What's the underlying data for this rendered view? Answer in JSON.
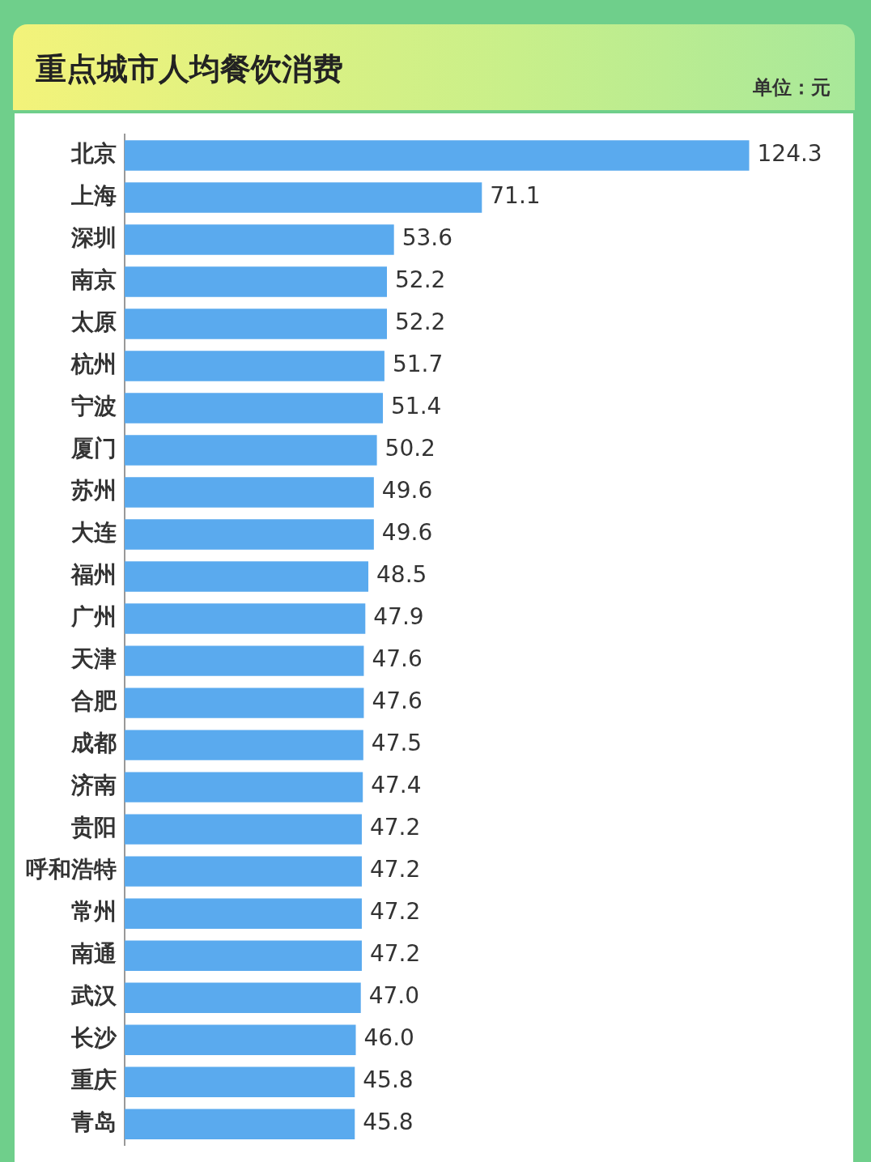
{
  "chart_data": {
    "type": "bar",
    "orientation": "horizontal",
    "title": "重点城市人均餐饮消费",
    "subtitle": "单位：元",
    "categories": [
      "北京",
      "上海",
      "深圳",
      "南京",
      "太原",
      "杭州",
      "宁波",
      "厦门",
      "苏州",
      "大连",
      "福州",
      "广州",
      "天津",
      "合肥",
      "成都",
      "济南",
      "贵阳",
      "呼和浩特",
      "常州",
      "南通",
      "武汉",
      "长沙",
      "重庆",
      "青岛"
    ],
    "values": [
      124.3,
      71.1,
      53.6,
      52.2,
      52.2,
      51.7,
      51.4,
      50.2,
      49.6,
      49.6,
      48.5,
      47.9,
      47.6,
      47.6,
      47.5,
      47.4,
      47.2,
      47.2,
      47.2,
      47.2,
      47.0,
      46.0,
      45.8,
      45.8
    ],
    "value_labels": [
      "124.3",
      "71.1",
      "53.6",
      "52.2",
      "52.2",
      "51.7",
      "51.4",
      "50.2",
      "49.6",
      "49.6",
      "48.5",
      "47.9",
      "47.6",
      "47.6",
      "47.5",
      "47.4",
      "47.2",
      "47.2",
      "47.2",
      "47.2",
      "47.0",
      "46.0",
      "45.8",
      "45.8"
    ],
    "color": "#5aaaee",
    "xlim": [
      0,
      145
    ],
    "grid": false,
    "legend": false,
    "tick_labels": "y"
  }
}
